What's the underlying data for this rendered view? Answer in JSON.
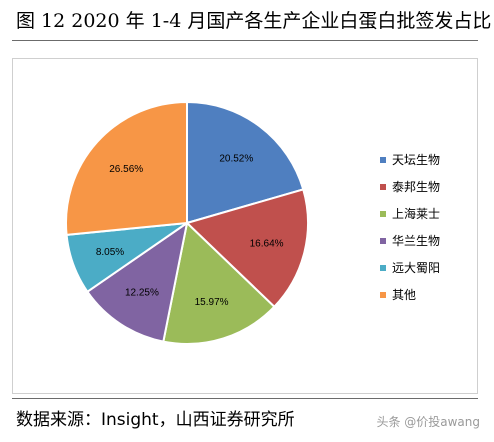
{
  "figure": {
    "title": "图 12 2020 年 1-4 月国产各生产企业白蛋白批签发占比",
    "source": "数据来源：Insight，山西证券研究所",
    "watermark": "头条 @价投awang"
  },
  "chart_data": {
    "type": "pie",
    "title": "",
    "start_angle_deg": 90,
    "direction": "clockwise",
    "legend_position": "right",
    "slices": [
      {
        "name": "天坛生物",
        "value": 20.52,
        "label": "20.52%",
        "color": "#4f7fc0"
      },
      {
        "name": "泰邦生物",
        "value": 16.64,
        "label": "16.64%",
        "color": "#c0504d"
      },
      {
        "name": "上海莱士",
        "value": 15.97,
        "label": "15.97%",
        "color": "#9bbb59"
      },
      {
        "name": "华兰生物",
        "value": 12.25,
        "label": "12.25%",
        "color": "#8064a2"
      },
      {
        "name": "远大蜀阳",
        "value": 8.05,
        "label": "8.05%",
        "color": "#4bacc6"
      },
      {
        "name": "其他",
        "value": 26.56,
        "label": "26.56%",
        "color": "#f79646"
      }
    ]
  }
}
